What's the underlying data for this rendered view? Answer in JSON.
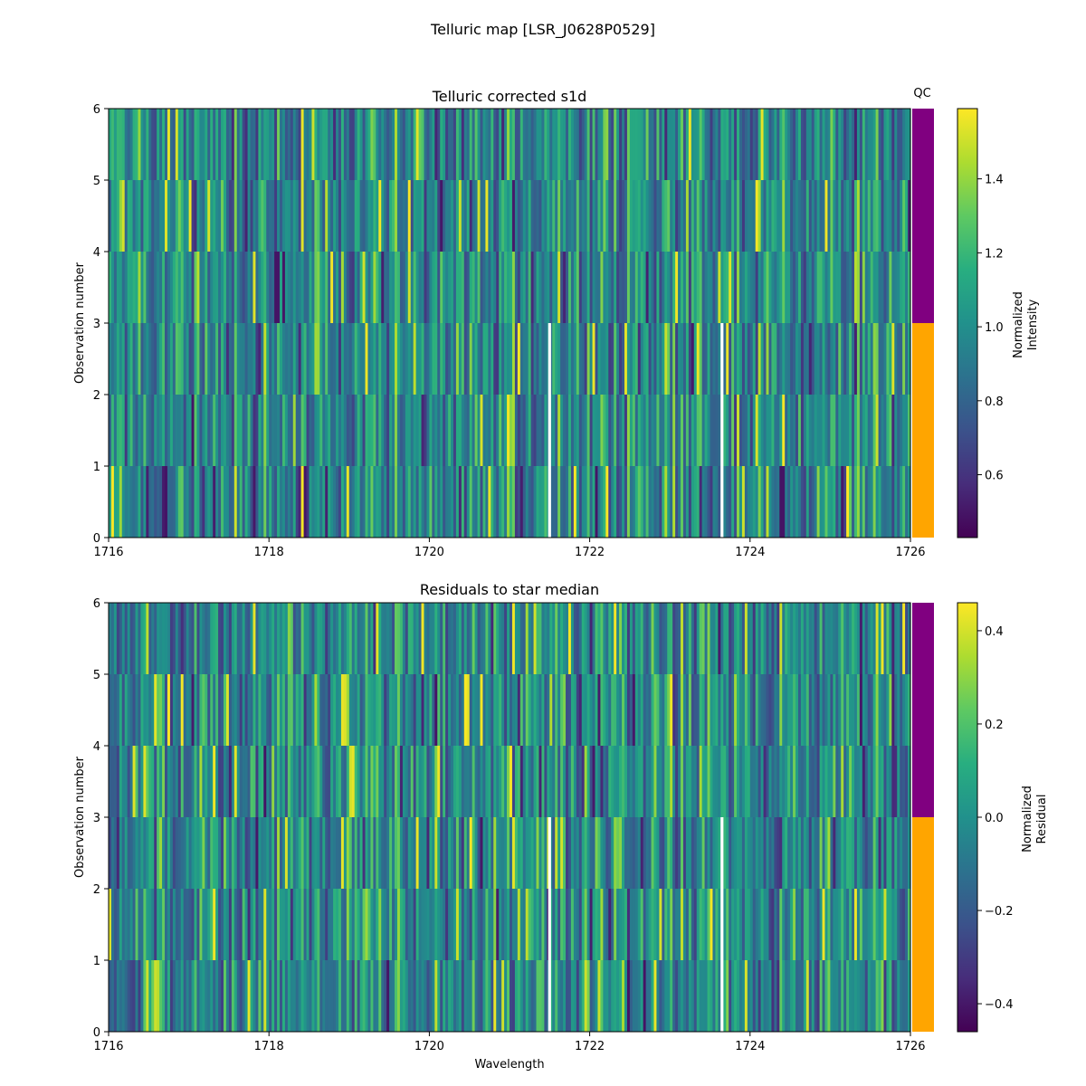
{
  "figure": {
    "suptitle": "Telluric map [LSR_J0628P0529]"
  },
  "chart_data": [
    {
      "type": "heatmap",
      "title": "Telluric corrected s1d",
      "xlabel": "",
      "ylabel": "Observation number",
      "xlim": [
        1716,
        1726
      ],
      "ylim": [
        0,
        6
      ],
      "xticks": [
        "1716",
        "1718",
        "1720",
        "1722",
        "1724",
        "1726"
      ],
      "yticks": [
        "0",
        "1",
        "2",
        "3",
        "4",
        "5",
        "6"
      ],
      "rows": 6,
      "masked_wavelengths": [
        1721.5,
        1723.65
      ],
      "seed": 11,
      "colorbar": {
        "label_lines": [
          "Normalized",
          "Intensity"
        ],
        "range": [
          0.43,
          1.59
        ],
        "ticks": [
          "0.6",
          "0.8",
          "1.0",
          "1.2",
          "1.4"
        ],
        "tick_values": [
          0.6,
          0.8,
          1.0,
          1.2,
          1.4
        ]
      },
      "qc": {
        "label": "QC",
        "bands": [
          {
            "from": 0,
            "to": 3,
            "color": "#ffa500"
          },
          {
            "from": 3,
            "to": 6,
            "color": "#800080"
          }
        ]
      }
    },
    {
      "type": "heatmap",
      "title": "Residuals to star median",
      "xlabel": "Wavelength",
      "ylabel": "Observation number",
      "xlim": [
        1716,
        1726
      ],
      "ylim": [
        0,
        6
      ],
      "xticks": [
        "1716",
        "1718",
        "1720",
        "1722",
        "1724",
        "1726"
      ],
      "yticks": [
        "0",
        "1",
        "2",
        "3",
        "4",
        "5",
        "6"
      ],
      "rows": 6,
      "masked_wavelengths": [
        1721.5,
        1723.65
      ],
      "seed": 29,
      "colorbar": {
        "label_lines": [
          "Normalized",
          "Residual"
        ],
        "range": [
          -0.46,
          0.46
        ],
        "ticks": [
          "−0.4",
          "−0.2",
          "0.0",
          "0.2",
          "0.4"
        ],
        "tick_values": [
          -0.4,
          -0.2,
          0.0,
          0.2,
          0.4
        ]
      },
      "qc": {
        "label": "",
        "bands": [
          {
            "from": 0,
            "to": 3,
            "color": "#ffa500"
          },
          {
            "from": 3,
            "to": 6,
            "color": "#800080"
          }
        ]
      }
    }
  ]
}
